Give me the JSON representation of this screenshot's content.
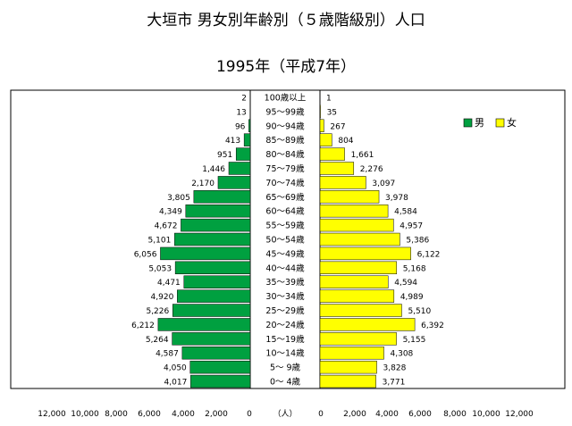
{
  "page": {
    "title": "大垣市 男女別年齢別（５歳階級別）人口",
    "subtitle": "1995年（平成7年）"
  },
  "chart_data": {
    "type": "bar",
    "orientation": "horizontal",
    "layout": "population-pyramid",
    "categories": [
      "100歳以上",
      "95～99歳",
      "90～94歳",
      "85～89歳",
      "80～84歳",
      "75～79歳",
      "70～74歳",
      "65～69歳",
      "60～64歳",
      "55～59歳",
      "50～54歳",
      "45～49歳",
      "40～44歳",
      "35～39歳",
      "30～34歳",
      "25～29歳",
      "20～24歳",
      "15～19歳",
      "10～14歳",
      "5～ 9歳",
      "0～ 4歳"
    ],
    "series": [
      {
        "name": "男",
        "color": "#00a040",
        "side": "left",
        "values": [
          2,
          13,
          96,
          413,
          951,
          1446,
          2170,
          3805,
          4349,
          4672,
          5101,
          6056,
          5053,
          4471,
          4920,
          5226,
          6212,
          5264,
          4587,
          4050,
          4017
        ],
        "labels": [
          "2",
          "13",
          "96",
          "413",
          "951",
          "1,446",
          "2,170",
          "3,805",
          "4,349",
          "4,672",
          "5,101",
          "6,056",
          "5,053",
          "4,471",
          "4,920",
          "5,226",
          "6,212",
          "5,264",
          "4,587",
          "4,050",
          "4,017"
        ]
      },
      {
        "name": "女",
        "color": "#ffff00",
        "side": "right",
        "values": [
          1,
          35,
          267,
          804,
          1661,
          2276,
          3097,
          3978,
          4584,
          4957,
          5386,
          6122,
          5168,
          4594,
          4989,
          5510,
          6392,
          5155,
          4308,
          3828,
          3771
        ],
        "labels": [
          "1",
          "35",
          "267",
          "804",
          "1,661",
          "2,276",
          "3,097",
          "3,978",
          "4,584",
          "4,957",
          "5,386",
          "6,122",
          "5,168",
          "4,594",
          "4,989",
          "5,510",
          "6,392",
          "5,155",
          "4,308",
          "3,828",
          "3,771"
        ]
      }
    ],
    "xlim": [
      0,
      12000
    ],
    "male_ticks": [
      "12,000",
      "10,000",
      "8,000",
      "6,000",
      "4,000",
      "2,000",
      "0"
    ],
    "female_ticks": [
      "0",
      "2,000",
      "4,000",
      "6,000",
      "8,000",
      "10,000",
      "12,000"
    ],
    "unit_label": "（人）",
    "legend_position": "top-right",
    "grid": false
  }
}
